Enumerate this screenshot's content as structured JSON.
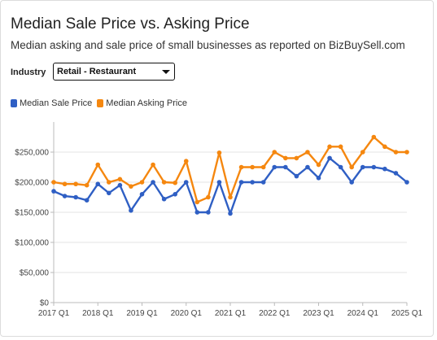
{
  "header": {
    "title": "Median Sale Price vs. Asking Price",
    "subtitle": "Median asking and sale price of small businesses as reported on BizBuySell.com"
  },
  "filter": {
    "label": "Industry",
    "selected": "Retail - Restaurant",
    "icon": "chevron-down-icon"
  },
  "colors": {
    "sale": "#2f5fc4",
    "asking": "#f5870f",
    "grid": "#e3e3e3",
    "axis": "#bbbbbb"
  },
  "chart_data": {
    "type": "line",
    "title": "Median Sale Price vs. Asking Price",
    "xlabel": "",
    "ylabel": "",
    "ylim": [
      0,
      300000
    ],
    "y_ticks": [
      0,
      50000,
      100000,
      150000,
      200000,
      250000
    ],
    "y_tick_labels": [
      "$0",
      "$50,000",
      "$100,000",
      "$150,000",
      "$200,000",
      "$250,000"
    ],
    "x_tick_labels": [
      "2017 Q1",
      "2018 Q1",
      "2019 Q1",
      "2020 Q1",
      "2021 Q1",
      "2022 Q1",
      "2023 Q1",
      "2024 Q1",
      "2025 Q1"
    ],
    "grid": true,
    "legend_position": "top-left",
    "x": [
      "2017 Q1",
      "2017 Q2",
      "2017 Q3",
      "2017 Q4",
      "2018 Q1",
      "2018 Q2",
      "2018 Q3",
      "2018 Q4",
      "2019 Q1",
      "2019 Q2",
      "2019 Q3",
      "2019 Q4",
      "2020 Q1",
      "2020 Q2",
      "2020 Q3",
      "2020 Q4",
      "2021 Q1",
      "2021 Q2",
      "2021 Q3",
      "2021 Q4",
      "2022 Q1",
      "2022 Q2",
      "2022 Q3",
      "2022 Q4",
      "2023 Q1",
      "2023 Q2",
      "2023 Q3",
      "2023 Q4",
      "2024 Q1",
      "2024 Q2",
      "2024 Q3",
      "2024 Q4",
      "2025 Q1"
    ],
    "series": [
      {
        "name": "Median Sale Price",
        "color_key": "sale",
        "values": [
          185000,
          177000,
          175000,
          170000,
          197000,
          182000,
          195000,
          153000,
          180000,
          200000,
          172000,
          180000,
          200000,
          150000,
          150000,
          200000,
          148000,
          200000,
          200000,
          200000,
          225000,
          225000,
          210000,
          225000,
          207000,
          240000,
          225000,
          200000,
          225000,
          225000,
          222000,
          215000,
          200000
        ]
      },
      {
        "name": "Median Asking Price",
        "color_key": "asking",
        "values": [
          200000,
          197000,
          197000,
          195000,
          229000,
          200000,
          205000,
          193000,
          200000,
          229000,
          200000,
          199000,
          235000,
          167000,
          175000,
          249000,
          175000,
          225000,
          225000,
          225000,
          250000,
          240000,
          240000,
          250000,
          229000,
          259000,
          259000,
          225000,
          250000,
          275000,
          259000,
          250000,
          250000
        ]
      }
    ]
  }
}
